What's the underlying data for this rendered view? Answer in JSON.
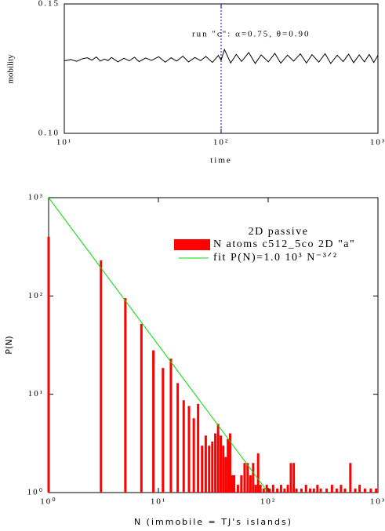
{
  "chart_data": [
    {
      "type": "line",
      "xlabel": "time",
      "ylabel": "mobility",
      "annotation": "run \"c\":   α=0.75,  θ=0.90",
      "vline": {
        "x": 100,
        "color": "#0000ff"
      },
      "xscale": "log",
      "xlim": [
        10,
        1000
      ],
      "xticks": [
        {
          "value": 10,
          "label": "10¹"
        },
        {
          "value": 100,
          "label": "10²"
        },
        {
          "value": 1000,
          "label": "10³"
        }
      ],
      "ylim": [
        0.1,
        0.15
      ],
      "yticks": [
        {
          "value": 0.1,
          "label": "0.10"
        },
        0.15
      ],
      "x": [
        10,
        11,
        12,
        13,
        14,
        15,
        16,
        17,
        18,
        19,
        20,
        22,
        24,
        26,
        28,
        30,
        33,
        36,
        40,
        44,
        48,
        52,
        57,
        62,
        68,
        74,
        80,
        88,
        96,
        100,
        105,
        115,
        125,
        135,
        150,
        165,
        180,
        200,
        220,
        240,
        265,
        290,
        320,
        350,
        380,
        420,
        460,
        500,
        550,
        600,
        650,
        700,
        760,
        820,
        880,
        940,
        1000
      ],
      "series": [
        {
          "color": "#000000",
          "values": [
            0.128,
            0.1285,
            0.1278,
            0.1288,
            0.1292,
            0.1283,
            0.1295,
            0.1279,
            0.1287,
            0.1281,
            0.1293,
            0.1276,
            0.129,
            0.128,
            0.1294,
            0.1277,
            0.1291,
            0.1282,
            0.1296,
            0.1275,
            0.1292,
            0.1279,
            0.1298,
            0.1276,
            0.1293,
            0.1281,
            0.1297,
            0.1274,
            0.1301,
            0.1283,
            0.1324,
            0.1272,
            0.1305,
            0.1278,
            0.1312,
            0.127,
            0.1303,
            0.1276,
            0.1309,
            0.1271,
            0.1302,
            0.1279,
            0.1307,
            0.1272,
            0.1304,
            0.1275,
            0.1308,
            0.127,
            0.1302,
            0.1277,
            0.1306,
            0.1273,
            0.1303,
            0.1276,
            0.1305,
            0.1274,
            0.1301
          ]
        }
      ]
    },
    {
      "type": "bar",
      "xlabel": "N (immobile = TJ's islands)",
      "ylabel": "P(N)",
      "legend_title": "2D passive",
      "xscale": "log",
      "yscale": "log",
      "xlim": [
        1,
        1000
      ],
      "xticks": [
        {
          "value": 1,
          "label": "10⁰"
        },
        {
          "value": 10,
          "label": "10¹"
        },
        {
          "value": 100,
          "label": "10²"
        },
        {
          "value": 1000,
          "label": "10³"
        }
      ],
      "ylim": [
        1,
        1000
      ],
      "yticks": [
        {
          "value": 1,
          "label": "10⁰"
        },
        {
          "value": 10,
          "label": "10¹"
        },
        {
          "value": 100,
          "label": "10²"
        },
        {
          "value": 1000,
          "label": "10³"
        }
      ],
      "x": [
        1,
        3,
        5,
        7,
        9,
        11,
        13,
        15,
        17,
        19,
        21,
        23,
        25,
        27,
        29,
        31,
        33,
        35,
        37,
        39,
        41,
        43,
        45,
        47,
        49,
        53,
        57,
        61,
        65,
        69,
        73,
        77,
        81,
        85,
        91,
        97,
        103,
        111,
        121,
        131,
        141,
        151,
        161,
        171,
        181,
        201,
        221,
        241,
        261,
        281,
        301,
        341,
        381,
        421,
        461,
        501,
        561,
        621,
        681,
        761,
        861,
        961
      ],
      "series": [
        {
          "name": "N atoms c512_5co 2D \"a\"",
          "color": "#ff0000",
          "values": [
            400,
            230,
            95,
            52,
            28,
            18.5,
            23,
            13,
            8.7,
            7.6,
            5.7,
            8,
            3,
            3.8,
            3,
            3.3,
            4,
            5,
            3.8,
            3,
            2.3,
            3.5,
            4,
            1.5,
            1.5,
            1.2,
            1.5,
            2,
            2,
            1.5,
            2,
            1.2,
            2.5,
            1.2,
            1.1,
            1.2,
            1.1,
            1.2,
            1.1,
            1.2,
            1.1,
            1.2,
            2,
            2,
            1.1,
            1.1,
            1.2,
            1.1,
            1.1,
            1.2,
            1.1,
            1.1,
            1.2,
            1.1,
            1.2,
            1.1,
            2,
            1.1,
            1.2,
            1.1,
            1.1,
            1.1
          ]
        },
        {
          "name": "fit P(N)=1.0 10³ N⁻³ᐟ²",
          "type": "line",
          "color": "#00dd00",
          "x": [
            1,
            100
          ],
          "values": [
            1000,
            1
          ]
        }
      ]
    }
  ]
}
